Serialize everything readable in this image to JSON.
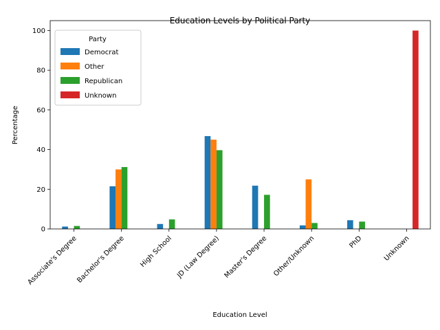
{
  "chart_data": {
    "type": "bar",
    "title": "Education Levels by Political Party",
    "xlabel": "Education Level",
    "ylabel": "Percentage",
    "ylim": [
      0,
      105
    ],
    "yticks": [
      0,
      20,
      40,
      60,
      80,
      100
    ],
    "grid": false,
    "legend": {
      "title": "Party",
      "placement": "top-left"
    },
    "categories": [
      "Associate's Degree",
      "Bachelor's Degree",
      "High School",
      "JD (Law Degree)",
      "Master's Degree",
      "Other/Unknown",
      "PhD",
      "Unknown"
    ],
    "series": [
      {
        "name": "Democrat",
        "color": "#1f77b4",
        "values": [
          1.2,
          21.5,
          2.5,
          46.8,
          21.8,
          1.8,
          4.4,
          0
        ]
      },
      {
        "name": "Other",
        "color": "#ff7f0e",
        "values": [
          0,
          30.0,
          0,
          45.0,
          0,
          25.0,
          0,
          0
        ]
      },
      {
        "name": "Republican",
        "color": "#2ca02c",
        "values": [
          1.5,
          31.2,
          4.8,
          39.7,
          17.2,
          3.0,
          3.7,
          0
        ]
      },
      {
        "name": "Unknown",
        "color": "#d62728",
        "values": [
          0,
          0,
          0,
          0,
          0,
          0,
          0,
          100.0
        ]
      }
    ]
  }
}
